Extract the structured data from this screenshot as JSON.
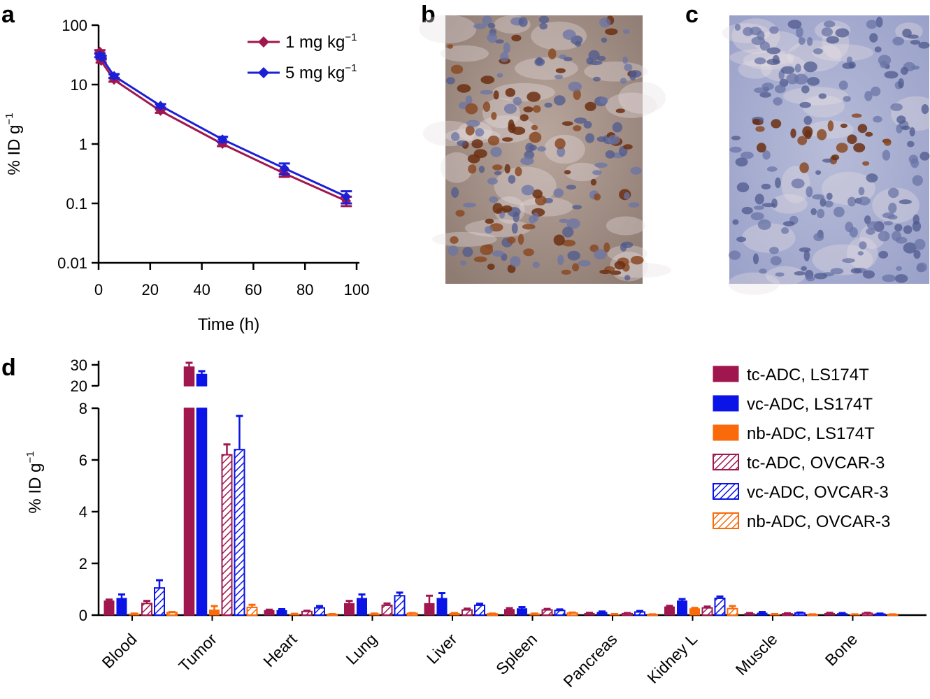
{
  "panels": {
    "a": "a",
    "b": "b",
    "c": "c",
    "d": "d"
  },
  "colors": {
    "tc": "#a0174f",
    "vc": "#0a14e6",
    "nb": "#fb6a0a",
    "pk1": "#a0174f",
    "pk5": "#1b1fd6"
  },
  "chart_data": [
    {
      "id": "a",
      "type": "line",
      "yscale": "log",
      "xlabel": "Time (h)",
      "ylabel": "% ID g",
      "ylabel_sup": "−1",
      "xlim": [
        0,
        100
      ],
      "ylim": [
        0.01,
        100
      ],
      "xticks": [
        0,
        20,
        40,
        60,
        80,
        100
      ],
      "yticks": [
        0.01,
        0.1,
        1,
        10,
        100
      ],
      "ytick_labels": [
        "0.01",
        "0.1",
        "1",
        "10",
        "100"
      ],
      "series": [
        {
          "name": "1 mg kg",
          "unit_sup": "−1",
          "x": [
            0.5,
            1,
            6,
            24,
            48,
            72,
            96
          ],
          "y": [
            36,
            25,
            12,
            3.6,
            1.0,
            0.32,
            0.11
          ],
          "err": [
            2,
            1.5,
            0.8,
            0.25,
            0.08,
            0.04,
            0.02
          ]
        },
        {
          "name": "5 mg kg",
          "unit_sup": "−1",
          "x": [
            0.5,
            1,
            6,
            24,
            48,
            72,
            96
          ],
          "y": [
            31,
            29,
            14,
            4.4,
            1.2,
            0.39,
            0.13
          ],
          "err": [
            2,
            1.5,
            1,
            0.3,
            0.12,
            0.08,
            0.03
          ]
        }
      ]
    },
    {
      "id": "d",
      "type": "bar",
      "ylabel": "% ID g",
      "ylabel_sup": "−1",
      "categories": [
        "Blood",
        "Tumor",
        "Heart",
        "Lung",
        "Liver",
        "Spleen",
        "Pancreas",
        "Kidney L",
        "Muscle",
        "Bone"
      ],
      "yticks_lower": [
        0,
        2,
        4,
        6,
        8
      ],
      "yticks_upper": [
        20,
        30
      ],
      "ylim_lower": [
        0,
        8
      ],
      "ylim_upper": [
        20,
        30
      ],
      "series": [
        {
          "name": "tc-ADC, LS174T",
          "color_key": "tc",
          "hatched": false,
          "values": [
            0.55,
            29.0,
            0.18,
            0.45,
            0.45,
            0.22,
            0.07,
            0.32,
            0.06,
            0.07
          ],
          "err": [
            0.05,
            2.0,
            0.03,
            0.1,
            0.3,
            0.05,
            0.02,
            0.04,
            0.02,
            0.02
          ]
        },
        {
          "name": "vc-ADC, LS174T",
          "color_key": "vc",
          "hatched": false,
          "values": [
            0.65,
            25.5,
            0.18,
            0.65,
            0.65,
            0.25,
            0.11,
            0.55,
            0.08,
            0.06
          ],
          "err": [
            0.15,
            1.5,
            0.05,
            0.15,
            0.2,
            0.06,
            0.03,
            0.07,
            0.04,
            0.02
          ]
        },
        {
          "name": "nb-ADC, LS174T",
          "color_key": "nb",
          "hatched": false,
          "values": [
            0.05,
            0.2,
            0.04,
            0.05,
            0.07,
            0.05,
            0.03,
            0.25,
            0.03,
            0.02
          ],
          "err": [
            0.01,
            0.15,
            0.01,
            0.01,
            0.01,
            0.01,
            0.01,
            0.03,
            0.01,
            0.01
          ]
        },
        {
          "name": "tc-ADC, OVCAR-3",
          "color_key": "tc",
          "hatched": true,
          "values": [
            0.45,
            6.2,
            0.14,
            0.38,
            0.2,
            0.2,
            0.06,
            0.28,
            0.05,
            0.07
          ],
          "err": [
            0.1,
            0.4,
            0.03,
            0.07,
            0.05,
            0.04,
            0.02,
            0.05,
            0.02,
            0.02
          ]
        },
        {
          "name": "vc-ADC, OVCAR-3",
          "color_key": "vc",
          "hatched": true,
          "values": [
            1.05,
            6.4,
            0.28,
            0.75,
            0.38,
            0.18,
            0.12,
            0.65,
            0.08,
            0.04
          ],
          "err": [
            0.3,
            1.3,
            0.07,
            0.12,
            0.06,
            0.04,
            0.04,
            0.07,
            0.02,
            0.02
          ]
        },
        {
          "name": "nb-ADC, OVCAR-3",
          "color_key": "nb",
          "hatched": true,
          "values": [
            0.1,
            0.3,
            0.03,
            0.07,
            0.05,
            0.08,
            0.02,
            0.25,
            0.02,
            0.02
          ],
          "err": [
            0.02,
            0.1,
            0.01,
            0.01,
            0.01,
            0.02,
            0.01,
            0.1,
            0.01,
            0.01
          ]
        }
      ]
    }
  ]
}
